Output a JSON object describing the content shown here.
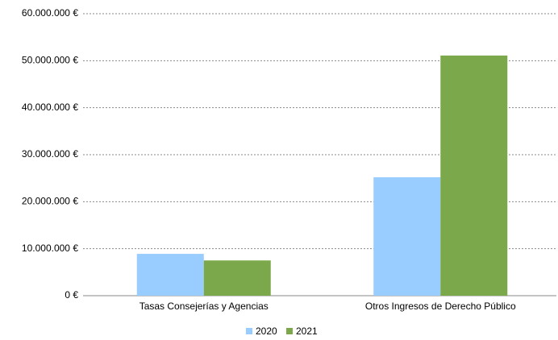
{
  "chart_data": {
    "type": "bar",
    "categories": [
      "Tasas Consejerías y Agencias",
      "Otros Ingresos de Derecho Público"
    ],
    "series": [
      {
        "name": "2020",
        "color": "#99ccff",
        "values": [
          8900000,
          25200000
        ]
      },
      {
        "name": "2021",
        "color": "#7ba84a",
        "values": [
          7500000,
          51100000
        ]
      }
    ],
    "ylim": [
      0,
      60000000
    ],
    "yticks": [
      {
        "value": 0,
        "label": "0 €"
      },
      {
        "value": 10000000,
        "label": "10.000.000 €"
      },
      {
        "value": 20000000,
        "label": "20.000.000 €"
      },
      {
        "value": 30000000,
        "label": "30.000.000 €"
      },
      {
        "value": 40000000,
        "label": "40.000.000 €"
      },
      {
        "value": 50000000,
        "label": "50.000.000 €"
      },
      {
        "value": 60000000,
        "label": "60.000.000 €"
      }
    ],
    "grid": true,
    "legend": "bottom"
  }
}
